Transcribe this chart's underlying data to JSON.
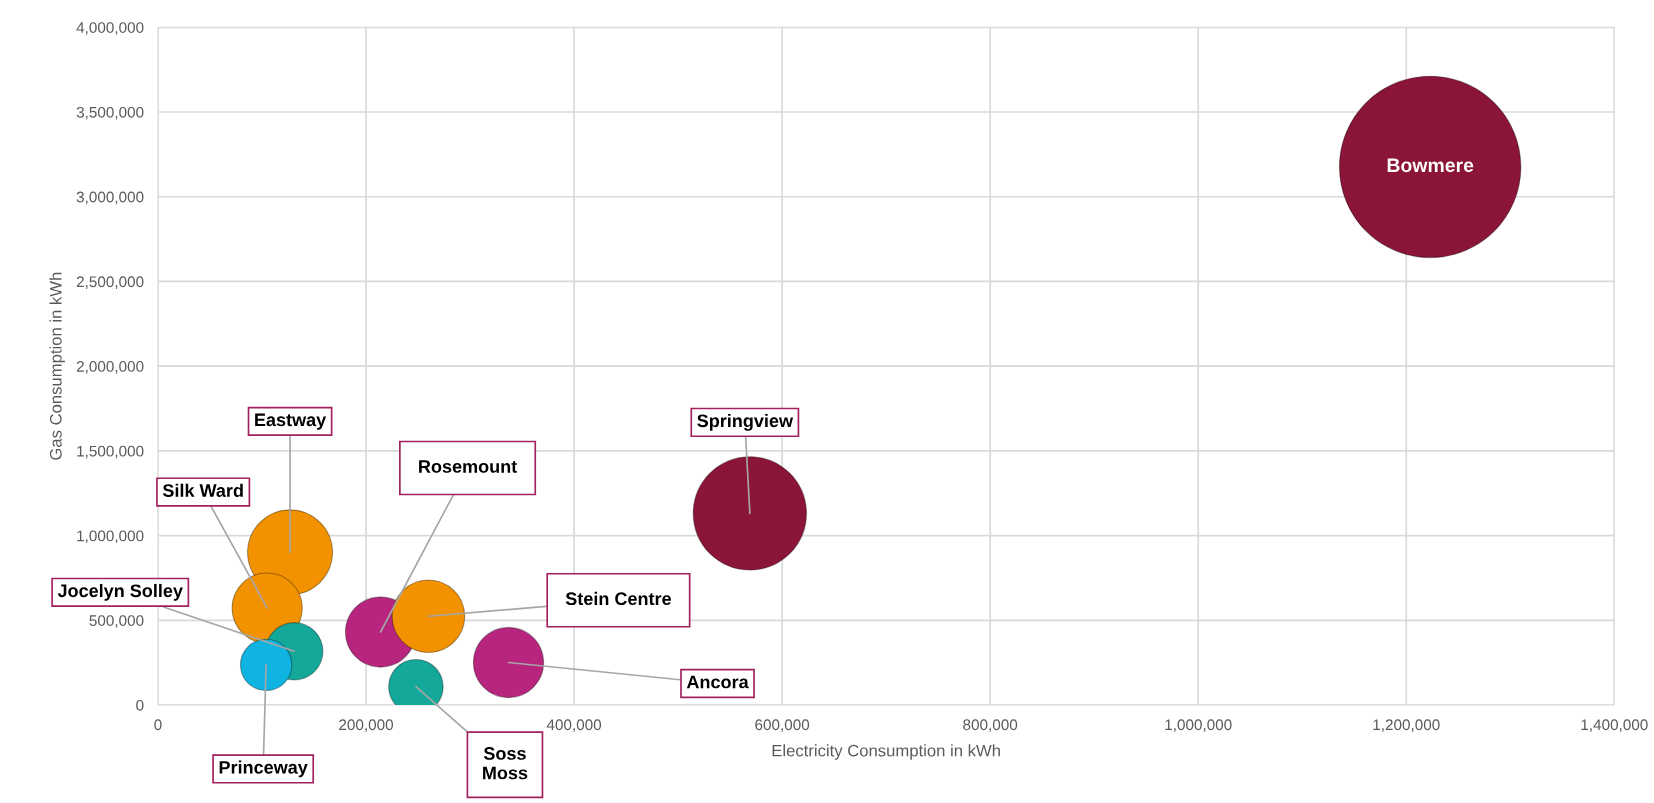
{
  "chart_data": {
    "type": "bubble",
    "xlabel": "Electricity Consumption in kWh",
    "ylabel": "Gas Consumption in kWh",
    "series": [
      {
        "x": [
          127000,
          105000,
          131000,
          104000,
          214000,
          260000,
          248000,
          337000,
          569000,
          1223000
        ],
        "values": [
          901000,
          572000,
          317000,
          237000,
          431000,
          524000,
          108000,
          251000,
          1131000,
          3176000
        ],
        "sizes": [
          0.22,
          0.15,
          0.1,
          0.08,
          0.15,
          0.16,
          0.09,
          0.15,
          0.39,
          1
        ],
        "colors": [
          "#f39200",
          "#f39200",
          "#14a89a",
          "#10b4e0",
          "#b8257e",
          "#f39200",
          "#14a89a",
          "#b8257e",
          "#8b1538",
          "#8b1538"
        ]
      }
    ],
    "annotations": [
      {
        "text": "Eastway",
        "x": 127000,
        "y": 901000
      },
      {
        "text": "Silk Ward",
        "x": 105000,
        "y": 572000
      },
      {
        "text": "Jocelyn Solley",
        "x": 131000,
        "y": 317000
      },
      {
        "text": "Princeway",
        "x": 104000,
        "y": 237000
      },
      {
        "text": "Rosemount",
        "x": 214000,
        "y": 431000
      },
      {
        "text": "Stein Centre",
        "x": 260000,
        "y": 524000
      },
      {
        "text": "Soss\nMoss",
        "x": 248000,
        "y": 108000
      },
      {
        "text": "Ancora",
        "x": 337000,
        "y": 251000
      },
      {
        "text": "Springview",
        "x": 569000,
        "y": 1131000
      },
      {
        "text": "Bowmere",
        "x": 1223000,
        "y": 3176000
      }
    ],
    "xlim": [
      0,
      1400000
    ],
    "xticks": [
      0,
      {
        "value": 200000,
        "label": "200,000"
      },
      {
        "value": 400000,
        "label": "400,000"
      },
      {
        "value": 600000,
        "label": "600,000"
      },
      {
        "value": 800000,
        "label": "800,000"
      },
      {
        "value": 1000000,
        "label": "1,000,000"
      },
      {
        "value": 1200000,
        "label": "1,200,000"
      },
      {
        "value": 1400000,
        "label": "1,400,000"
      }
    ],
    "ylim": [
      0,
      4000000
    ],
    "yticks": [
      0,
      {
        "value": 500000,
        "label": "500,000"
      },
      {
        "value": 1000000,
        "label": "1,000,000"
      },
      {
        "value": 1500000,
        "label": "1,500,000"
      },
      {
        "value": 2000000,
        "label": "2,000,000"
      },
      {
        "value": 2500000,
        "label": "2,500,000"
      },
      {
        "value": 3000000,
        "label": "3,000,000"
      },
      {
        "value": 3500000,
        "label": "3,500,000"
      },
      {
        "value": 4000000,
        "label": "4,000,000"
      }
    ],
    "grid": true
  }
}
